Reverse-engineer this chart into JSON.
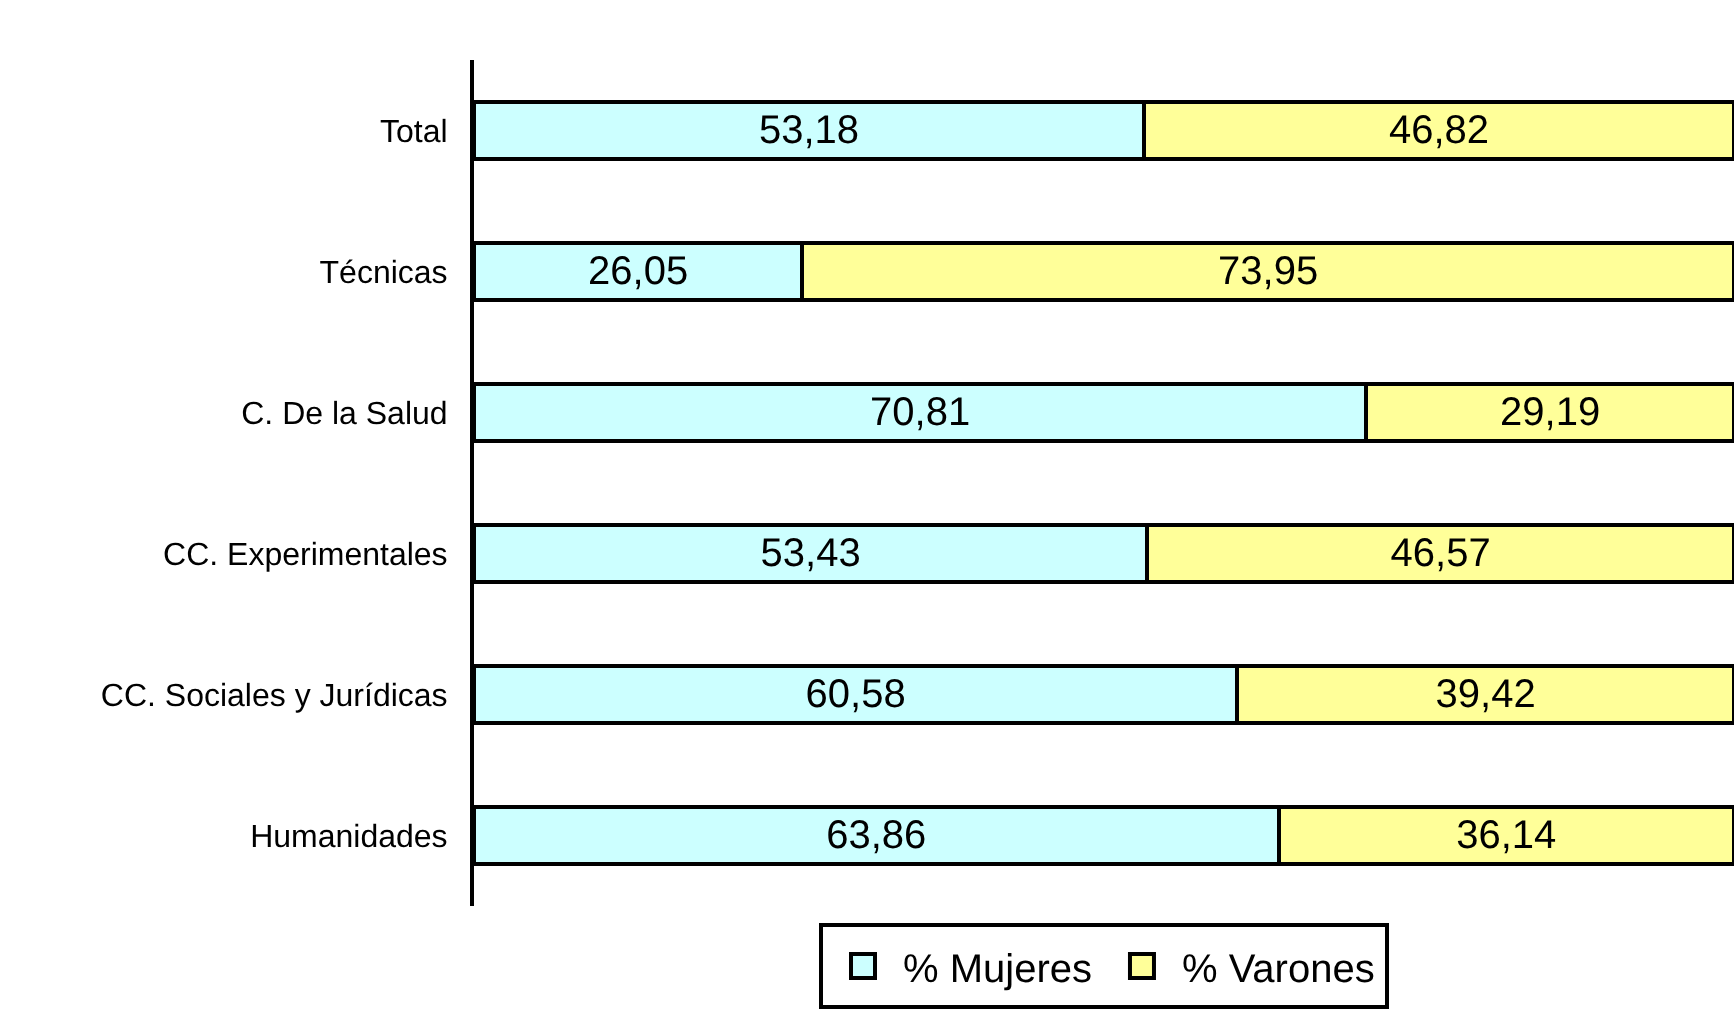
{
  "chart_data": {
    "type": "bar",
    "orientation": "horizontal",
    "stacked": true,
    "categories": [
      "Total",
      "Técnicas",
      "C. De la Salud",
      "CC. Experimentales",
      "CC. Sociales y Jurídicas",
      "Humanidades"
    ],
    "xlim": [
      0,
      100
    ],
    "series": [
      {
        "name": "% Mujeres",
        "color": "#ccffff",
        "values": [
          53.18,
          26.05,
          70.81,
          53.43,
          60.58,
          63.86
        ],
        "value_labels": [
          "53,18",
          "26,05",
          "70,81",
          "53,43",
          "60,58",
          "63,86"
        ]
      },
      {
        "name": "% Varones",
        "color": "#ffff99",
        "values": [
          46.82,
          73.95,
          29.19,
          46.57,
          39.42,
          36.14
        ],
        "value_labels": [
          "46,82",
          "73,95",
          "29,19",
          "46,57",
          "39,42",
          "36,14"
        ]
      }
    ],
    "legend": "bottom",
    "tick_labels": "y"
  }
}
